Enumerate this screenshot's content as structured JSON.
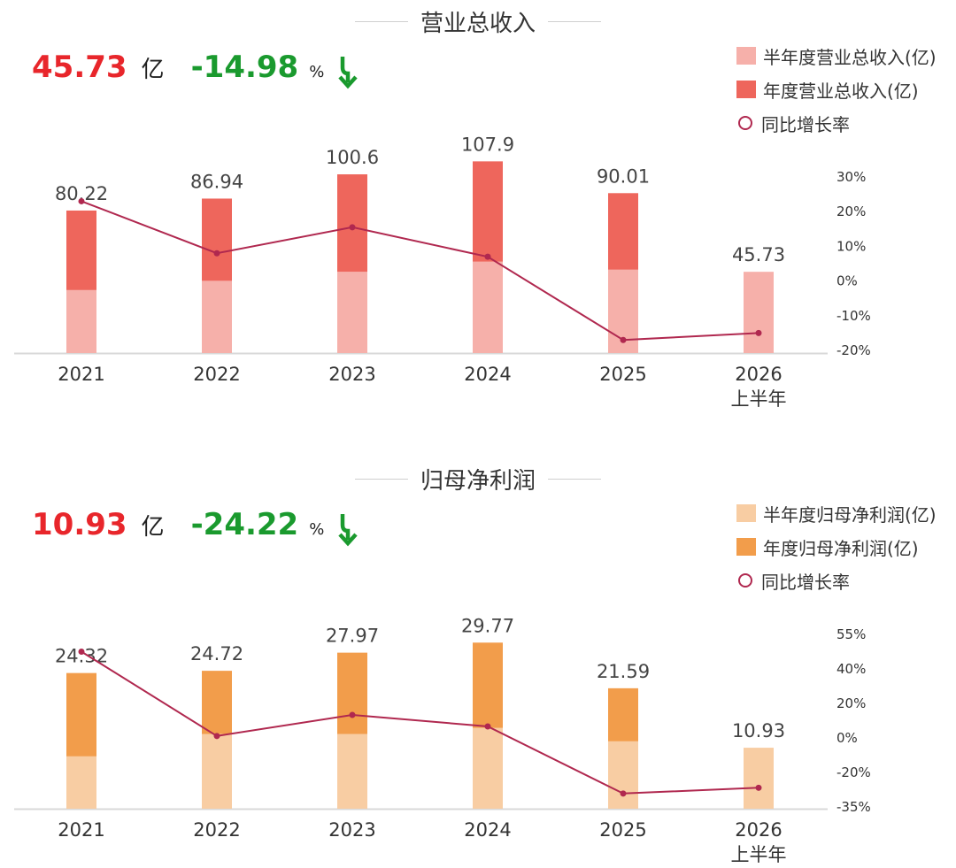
{
  "chart_data": [
    {
      "type": "bar",
      "title": "营业总收入",
      "headline": {
        "value": "45.73",
        "unit": "亿",
        "change": "-14.98",
        "change_unit": "%"
      },
      "categories": [
        "2021",
        "2022",
        "2023",
        "2024",
        "2025",
        "2026 上半年"
      ],
      "series": [
        {
          "name": "半年度营业总收入(亿)",
          "kind": "bar",
          "color": "#f6b0aa",
          "values": [
            35.5,
            40.7,
            45.8,
            51.5,
            47.0,
            45.73
          ]
        },
        {
          "name": "年度营业总收入(亿)",
          "kind": "bar",
          "color": "#ee665c",
          "values": [
            80.22,
            86.94,
            100.6,
            107.9,
            90.01,
            null
          ]
        },
        {
          "name": "同比增长率",
          "kind": "line",
          "axis": "right",
          "color": "#b0284f",
          "values": [
            23,
            8,
            15.5,
            7,
            -17,
            -15
          ]
        }
      ],
      "data_labels": [
        "80.22",
        "86.94",
        "100.6",
        "107.9",
        "90.01",
        "45.73"
      ],
      "ylim": [
        0,
        130
      ],
      "y2_ticks": [
        "30%",
        "20%",
        "10%",
        "0%",
        "-10%",
        "-20%"
      ],
      "y2lim": [
        -20,
        30
      ],
      "legend_position": "top-right",
      "grid": false
    },
    {
      "type": "bar",
      "title": "归母净利润",
      "headline": {
        "value": "10.93",
        "unit": "亿",
        "change": "-24.22",
        "change_unit": "%"
      },
      "categories": [
        "2021",
        "2022",
        "2023",
        "2024",
        "2025",
        "2026 上半年"
      ],
      "series": [
        {
          "name": "半年度归母净利润(亿)",
          "kind": "bar",
          "color": "#f8cda3",
          "values": [
            9.4,
            13.4,
            13.4,
            14.5,
            12.1,
            10.93
          ]
        },
        {
          "name": "年度归母净利润(亿)",
          "kind": "bar",
          "color": "#f29d4b",
          "values": [
            24.32,
            24.72,
            27.97,
            29.77,
            21.59,
            null
          ]
        },
        {
          "name": "同比增长率",
          "kind": "line",
          "axis": "right",
          "color": "#b0284f",
          "values": [
            46,
            2,
            13,
            7,
            -28,
            -25
          ]
        }
      ],
      "data_labels": [
        "24.32",
        "24.72",
        "27.97",
        "29.77",
        "21.59",
        "10.93"
      ],
      "ylim": [
        0,
        36
      ],
      "y2_ticks": [
        "55%",
        "40%",
        "20%",
        "0%",
        "-20%",
        "-35%"
      ],
      "y2lim": [
        -35,
        55
      ],
      "legend_position": "top-right",
      "grid": false
    }
  ]
}
